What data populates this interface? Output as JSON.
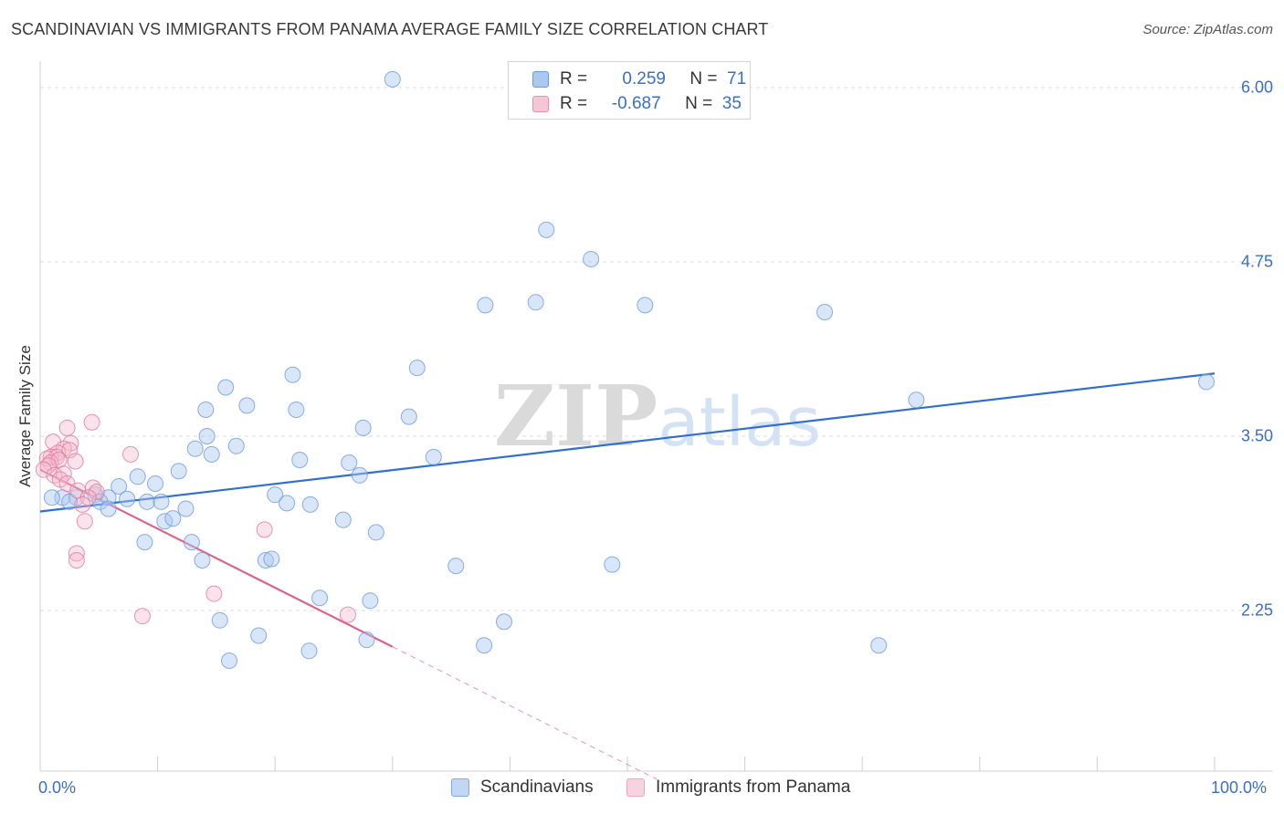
{
  "chart_data": {
    "type": "scatter",
    "title": "SCANDINAVIAN VS IMMIGRANTS FROM PANAMA AVERAGE FAMILY SIZE CORRELATION CHART",
    "source": "Source: ZipAtlas.com",
    "ylabel": "Average Family Size",
    "xlabel": "",
    "xlim": [
      0,
      100
    ],
    "ylim": [
      1.0,
      6.2
    ],
    "y_ticks": [
      "6.00",
      "4.75",
      "3.50",
      "2.25"
    ],
    "y_tick_values": [
      6.0,
      4.75,
      3.5,
      2.25
    ],
    "x_tick_labels": [
      "0.0%",
      "100.0%"
    ],
    "watermark": "ZIPatlas",
    "legend": [
      {
        "r_label": "R =",
        "r_value": "0.259",
        "n_label": "N =",
        "n_value": "71"
      },
      {
        "r_label": "R =",
        "r_value": "-0.687",
        "n_label": "N =",
        "n_value": "35"
      }
    ],
    "series": [
      {
        "name": "Scandinavians",
        "color": "#6a9be0",
        "fill": "#aac8f0",
        "trend": {
          "x": [
            0,
            100
          ],
          "y": [
            2.96,
            3.95
          ]
        },
        "points": [
          [
            30.0,
            6.06
          ],
          [
            43.1,
            4.98
          ],
          [
            46.9,
            4.77
          ],
          [
            37.9,
            4.44
          ],
          [
            42.2,
            4.46
          ],
          [
            51.5,
            4.44
          ],
          [
            66.8,
            4.39
          ],
          [
            32.1,
            3.99
          ],
          [
            21.5,
            3.94
          ],
          [
            15.8,
            3.85
          ],
          [
            74.6,
            3.76
          ],
          [
            99.3,
            3.89
          ],
          [
            17.6,
            3.72
          ],
          [
            14.1,
            3.69
          ],
          [
            21.8,
            3.69
          ],
          [
            31.4,
            3.64
          ],
          [
            27.5,
            3.56
          ],
          [
            14.2,
            3.5
          ],
          [
            16.7,
            3.43
          ],
          [
            13.2,
            3.41
          ],
          [
            14.6,
            3.37
          ],
          [
            11.8,
            3.25
          ],
          [
            22.1,
            3.33
          ],
          [
            26.3,
            3.31
          ],
          [
            33.5,
            3.35
          ],
          [
            27.2,
            3.22
          ],
          [
            8.3,
            3.21
          ],
          [
            9.8,
            3.16
          ],
          [
            6.7,
            3.14
          ],
          [
            4.7,
            3.08
          ],
          [
            5.8,
            3.06
          ],
          [
            5.1,
            3.03
          ],
          [
            1.9,
            3.06
          ],
          [
            3.1,
            3.06
          ],
          [
            1.0,
            3.06
          ],
          [
            2.5,
            3.03
          ],
          [
            7.4,
            3.05
          ],
          [
            9.1,
            3.03
          ],
          [
            10.3,
            3.03
          ],
          [
            20.0,
            3.08
          ],
          [
            21.0,
            3.02
          ],
          [
            23.0,
            3.01
          ],
          [
            12.4,
            2.98
          ],
          [
            5.8,
            2.98
          ],
          [
            25.8,
            2.9
          ],
          [
            10.6,
            2.89
          ],
          [
            11.3,
            2.91
          ],
          [
            28.6,
            2.81
          ],
          [
            8.9,
            2.74
          ],
          [
            12.9,
            2.74
          ],
          [
            19.2,
            2.61
          ],
          [
            19.7,
            2.62
          ],
          [
            13.8,
            2.61
          ],
          [
            35.4,
            2.57
          ],
          [
            48.7,
            2.58
          ],
          [
            23.8,
            2.34
          ],
          [
            28.1,
            2.32
          ],
          [
            15.3,
            2.18
          ],
          [
            39.5,
            2.17
          ],
          [
            18.6,
            2.07
          ],
          [
            22.9,
            1.96
          ],
          [
            27.8,
            2.04
          ],
          [
            37.8,
            2.0
          ],
          [
            71.4,
            2.0
          ],
          [
            16.1,
            1.89
          ]
        ]
      },
      {
        "name": "Immigrants from Panama",
        "color": "#e07a9c",
        "fill": "#f5b8cc",
        "trend": {
          "x": [
            0,
            30
          ],
          "y": [
            3.26,
            1.99
          ]
        },
        "trend_dashed": {
          "x": [
            30,
            52.5
          ],
          "y": [
            1.99,
            1.04
          ]
        },
        "points": [
          [
            4.4,
            3.6
          ],
          [
            2.3,
            3.56
          ],
          [
            2.6,
            3.45
          ],
          [
            1.1,
            3.46
          ],
          [
            2.0,
            3.41
          ],
          [
            1.5,
            3.38
          ],
          [
            2.5,
            3.4
          ],
          [
            0.9,
            3.35
          ],
          [
            1.4,
            3.35
          ],
          [
            0.6,
            3.34
          ],
          [
            0.9,
            3.31
          ],
          [
            1.6,
            3.33
          ],
          [
            7.7,
            3.37
          ],
          [
            3.0,
            3.32
          ],
          [
            0.7,
            3.29
          ],
          [
            0.3,
            3.26
          ],
          [
            1.2,
            3.22
          ],
          [
            2.0,
            3.23
          ],
          [
            1.7,
            3.19
          ],
          [
            2.3,
            3.16
          ],
          [
            4.5,
            3.13
          ],
          [
            4.8,
            3.1
          ],
          [
            3.2,
            3.11
          ],
          [
            4.1,
            3.06
          ],
          [
            3.6,
            3.01
          ],
          [
            3.8,
            2.89
          ],
          [
            19.1,
            2.83
          ],
          [
            3.1,
            2.66
          ],
          [
            3.1,
            2.61
          ],
          [
            14.8,
            2.37
          ],
          [
            8.7,
            2.21
          ],
          [
            26.2,
            2.22
          ]
        ]
      }
    ]
  }
}
